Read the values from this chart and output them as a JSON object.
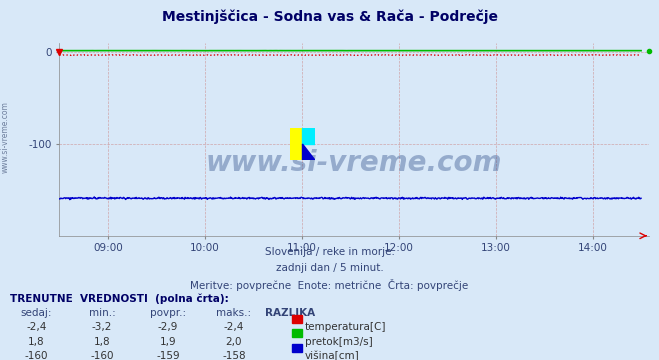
{
  "title": "Mestinjščica - Sodna vas & Rača - Podrečje",
  "background_color": "#d8e8f8",
  "plot_bg_color": "#d8e8f8",
  "xlim": [
    8.5,
    14.583
  ],
  "ylim": [
    -200,
    10
  ],
  "yticks": [
    0,
    -100
  ],
  "xtick_labels": [
    "09:00",
    "10:00",
    "11:00",
    "12:00",
    "13:00",
    "14:00"
  ],
  "xtick_positions": [
    9,
    10,
    11,
    12,
    13,
    14
  ],
  "subtitle1": "Slovenija / reke in morje.",
  "subtitle2": "zadnji dan / 5 minut.",
  "subtitle3": "Meritve: povprečne  Enote: metrične  Črta: povprečje",
  "watermark": "www.si-vreme.com",
  "watermark_color": "#1a3a7a",
  "side_text": "www.si-vreme.com",
  "grid_color": "#cc8888",
  "temp_color": "#dd0000",
  "pretok_color": "#00bb00",
  "visina_color": "#0000cc",
  "temp_value": -2.9,
  "pretok_value": 1.9,
  "visina_value": -159,
  "table_header": "TRENUTNE  VREDNOSTI  (polna črta):",
  "col_headers": [
    "sedaj:",
    "min.:",
    "povpr.:",
    "maks.:",
    "RAZLIKA"
  ],
  "row_temp": [
    "-2,4",
    "-3,2",
    "-2,9",
    "-2,4",
    "temperatura[C]"
  ],
  "row_pretok": [
    "1,8",
    "1,8",
    "1,9",
    "2,0",
    "pretok[m3/s]"
  ],
  "row_visina": [
    "-160",
    "-160",
    "-159",
    "-158",
    "višina[cm]"
  ],
  "legend_colors": [
    "#dd0000",
    "#00bb00",
    "#0000cc"
  ],
  "legend_labels": [
    "temperatura[C]",
    "pretok[m3/s]",
    "višina[cm]"
  ]
}
